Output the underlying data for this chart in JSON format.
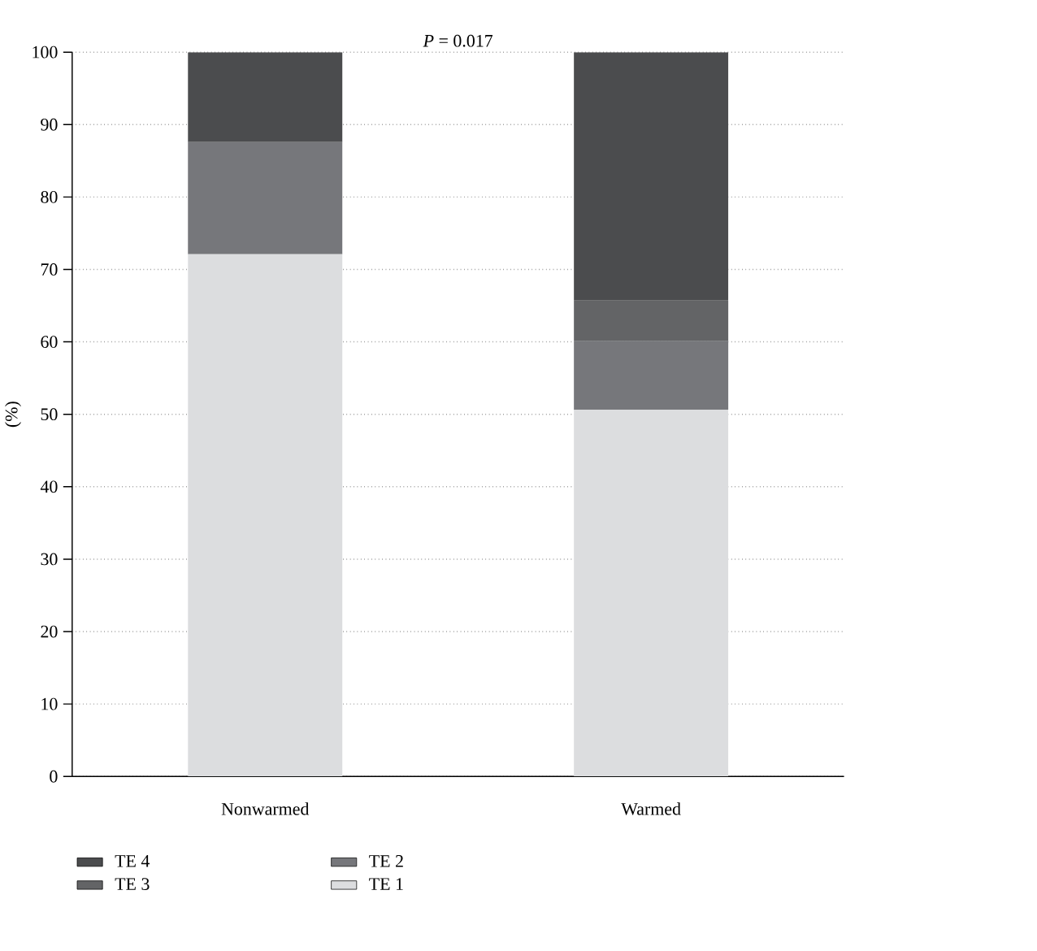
{
  "chart_data": {
    "type": "bar",
    "stacked": true,
    "title": "*P* = 0.017",
    "ylabel": "(%)",
    "categories": [
      "Nonwarmed",
      "Warmed"
    ],
    "series": [
      {
        "name": "TE 1",
        "color": "#dcdddf",
        "values": [
          72.1,
          50.6
        ]
      },
      {
        "name": "TE 2",
        "color": "#76777b",
        "values": [
          15.5,
          9.5
        ]
      },
      {
        "name": "TE 3",
        "color": "#636466",
        "values": [
          0,
          5.6
        ]
      },
      {
        "name": "TE 4",
        "color": "#4b4c4e",
        "values": [
          12.4,
          34.3
        ]
      }
    ],
    "ylim": [
      0,
      100
    ],
    "yticks": [
      0,
      10,
      20,
      30,
      40,
      50,
      60,
      70,
      80,
      90,
      100
    ],
    "grid": "y",
    "legend": "bottom"
  }
}
